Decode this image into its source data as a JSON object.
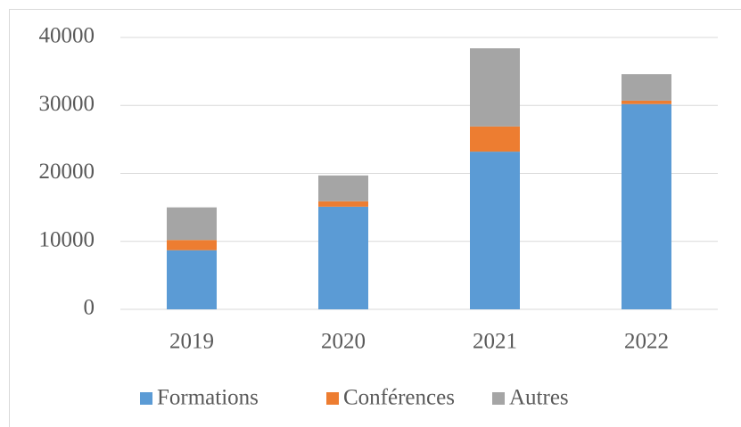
{
  "chart_data": {
    "type": "stacked_bar",
    "categories": [
      "2019",
      "2020",
      "2021",
      "2022"
    ],
    "series": [
      {
        "name": "Formations",
        "color": "#5b9bd5",
        "values": [
          8700,
          15100,
          23200,
          30200
        ]
      },
      {
        "name": "Conférences",
        "color": "#ed7d31",
        "values": [
          1500,
          800,
          3700,
          500
        ]
      },
      {
        "name": "Autres",
        "color": "#a5a5a5",
        "values": [
          4800,
          3800,
          11500,
          3900
        ]
      }
    ],
    "ylim": [
      0,
      40000
    ],
    "yticks": [
      0,
      10000,
      20000,
      30000,
      40000
    ],
    "grid": true,
    "legend": "bottom"
  }
}
